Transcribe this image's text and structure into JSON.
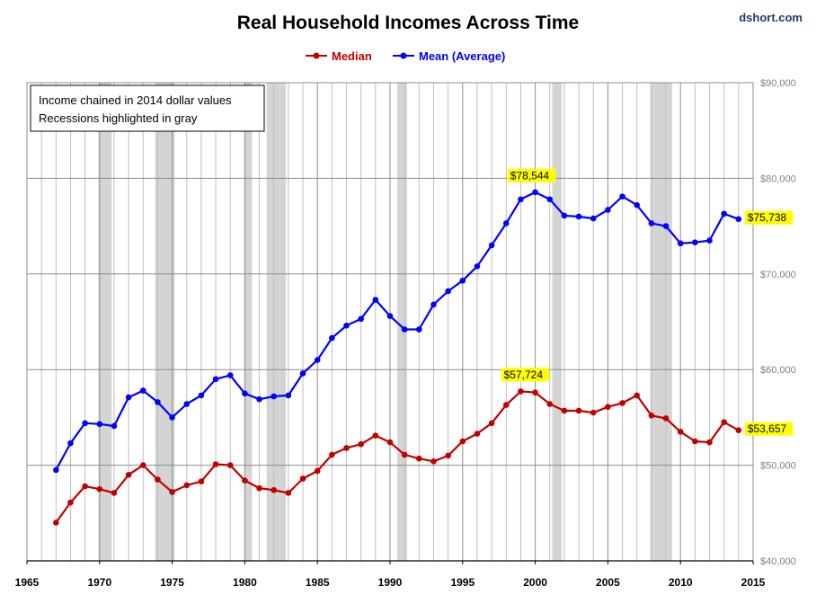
{
  "chart_data": {
    "type": "line",
    "title": "Real Household Incomes Across Time",
    "credit": "dshort.com",
    "notes": [
      "Income chained in 2014 dollar values",
      "Recessions highlighted in gray"
    ],
    "xlim": [
      1965,
      2015
    ],
    "ylim": [
      40000,
      90000
    ],
    "x_ticks": [
      "1965",
      "1970",
      "1975",
      "1980",
      "1985",
      "1990",
      "1995",
      "2000",
      "2005",
      "2010",
      "2015"
    ],
    "y_ticks": [
      "$40,000",
      "$50,000",
      "$60,000",
      "$70,000",
      "$80,000",
      "$90,000"
    ],
    "y_axis_side": "right",
    "grid": true,
    "legend_position": "top-center",
    "recessions": [
      [
        1969.92,
        1970.83
      ],
      [
        1973.83,
        1975.17
      ],
      [
        1980.0,
        1980.5
      ],
      [
        1981.5,
        1982.83
      ],
      [
        1990.5,
        1991.17
      ],
      [
        2001.17,
        2001.83
      ],
      [
        2007.92,
        2009.42
      ]
    ],
    "x": [
      1967,
      1968,
      1969,
      1970,
      1971,
      1972,
      1973,
      1974,
      1975,
      1976,
      1977,
      1978,
      1979,
      1980,
      1981,
      1982,
      1983,
      1984,
      1985,
      1986,
      1987,
      1988,
      1989,
      1990,
      1991,
      1992,
      1993,
      1994,
      1995,
      1996,
      1997,
      1998,
      1999,
      2000,
      2001,
      2002,
      2003,
      2004,
      2005,
      2006,
      2007,
      2008,
      2009,
      2010,
      2011,
      2012,
      2013,
      2014
    ],
    "series": [
      {
        "name": "Median",
        "color": "#c00000",
        "values": [
          44000,
          46100,
          47800,
          47500,
          47100,
          49000,
          50000,
          48500,
          47200,
          47900,
          48300,
          50100,
          50000,
          48400,
          47600,
          47400,
          47100,
          48600,
          49400,
          51100,
          51800,
          52200,
          53100,
          52400,
          51100,
          50700,
          50400,
          51000,
          52500,
          53300,
          54400,
          56300,
          57724,
          57600,
          56400,
          55700,
          55700,
          55500,
          56100,
          56500,
          57300,
          55200,
          54900,
          53500,
          52500,
          52400,
          54500,
          53657
        ],
        "end_label": "$53,657",
        "peak_label": "$57,724"
      },
      {
        "name": "Mean (Average)",
        "color": "#0000ff",
        "values": [
          49500,
          52300,
          54400,
          54300,
          54100,
          57100,
          57800,
          56600,
          55000,
          56400,
          57300,
          59000,
          59400,
          57500,
          56900,
          57200,
          57300,
          59600,
          61000,
          63300,
          64600,
          65300,
          67300,
          65600,
          64200,
          64200,
          66800,
          68200,
          69300,
          70800,
          73000,
          75300,
          77800,
          78544,
          77800,
          76100,
          76000,
          75800,
          76700,
          78100,
          77200,
          75300,
          75000,
          73200,
          73300,
          73500,
          76300,
          75738
        ],
        "end_label": "$75,738",
        "peak_label": "$78,544"
      }
    ]
  },
  "colors": {
    "recession": "#d4d4d4",
    "gridline": "#bfbfbf",
    "callout_bg": "#ffff00"
  }
}
